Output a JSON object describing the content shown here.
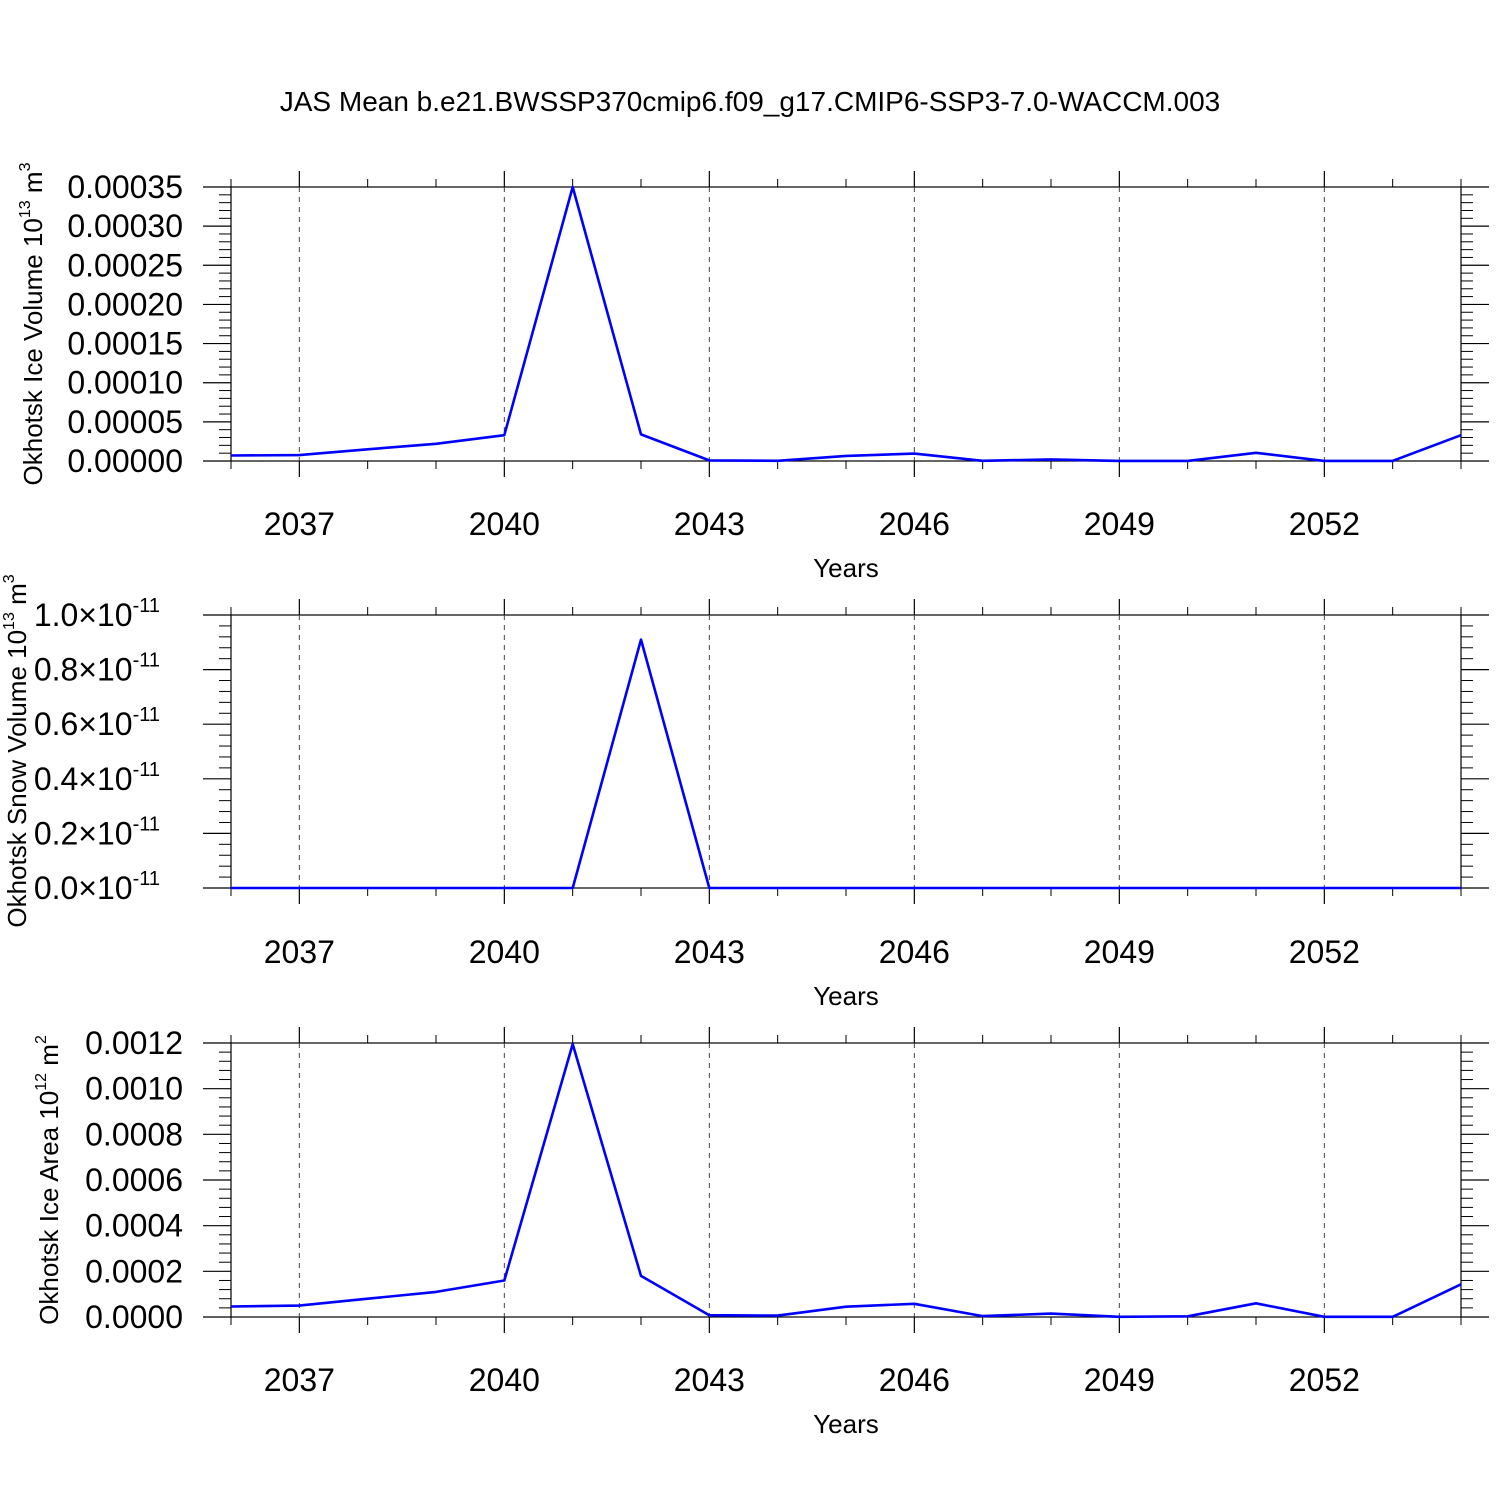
{
  "figure": {
    "title": "JAS Mean b.e21.BWSSP370cmip6.f09_g17.CMIP6-SSP3-7.0-WACCM.003",
    "line_color": "#0000ff"
  },
  "chart_data": [
    {
      "type": "line",
      "x": [
        2036,
        2037,
        2038,
        2039,
        2040,
        2041,
        2042,
        2043,
        2044,
        2045,
        2046,
        2047,
        2048,
        2049,
        2050,
        2051,
        2052,
        2053,
        2054
      ],
      "series": [
        {
          "values": [
            7e-06,
            7.5e-06,
            1.5e-05,
            2.2e-05,
            3.3e-05,
            0.00035,
            3.4e-05,
            8e-07,
            3e-07,
            6.5e-06,
            9.5e-06,
            2e-07,
            2e-06,
            1e-07,
            1e-07,
            1.05e-05,
            1e-07,
            1e-07,
            3.3e-05
          ]
        }
      ],
      "xlabel": "Years",
      "ylabel": {
        "text": "Okhotsk Ice Volume 10",
        "exp": "13",
        "unit": " m",
        "unit_exp": "3"
      },
      "xticks": [
        "2037",
        "2040",
        "2043",
        "2046",
        "2049",
        "2052"
      ],
      "yticks": [
        "0.00000",
        "0.00005",
        "0.00010",
        "0.00015",
        "0.00020",
        "0.00025",
        "0.00030",
        "0.00035"
      ],
      "ylim": [
        0,
        0.00035
      ],
      "xlim": [
        2036,
        2054
      ],
      "grid": "x-dashed"
    },
    {
      "type": "line",
      "x": [
        2036,
        2037,
        2038,
        2039,
        2040,
        2041,
        2042,
        2043,
        2044,
        2045,
        2046,
        2047,
        2048,
        2049,
        2050,
        2051,
        2052,
        2053,
        2054
      ],
      "series": [
        {
          "values": [
            0,
            0,
            0,
            0,
            0,
            0,
            9.1e-12,
            0,
            0,
            0,
            0,
            0,
            0,
            0,
            0,
            0,
            0,
            0,
            0
          ]
        }
      ],
      "xlabel": "Years",
      "ylabel": {
        "text": "Okhotsk Snow Volume 10",
        "exp": "13",
        "unit": " m",
        "unit_exp": "3"
      },
      "xticks": [
        "2037",
        "2040",
        "2043",
        "2046",
        "2049",
        "2052"
      ],
      "yticks": [
        {
          "m": "0.0",
          "e": "-11"
        },
        {
          "m": "0.2",
          "e": "-11"
        },
        {
          "m": "0.4",
          "e": "-11"
        },
        {
          "m": "0.6",
          "e": "-11"
        },
        {
          "m": "0.8",
          "e": "-11"
        },
        {
          "m": "1.0",
          "e": "-11"
        }
      ],
      "ylim": [
        0,
        1e-11
      ],
      "xlim": [
        2036,
        2054
      ],
      "grid": "x-dashed"
    },
    {
      "type": "line",
      "x": [
        2036,
        2037,
        2038,
        2039,
        2040,
        2041,
        2042,
        2043,
        2044,
        2045,
        2046,
        2047,
        2048,
        2049,
        2050,
        2051,
        2052,
        2053,
        2054
      ],
      "series": [
        {
          "values": [
            4.6e-05,
            5e-05,
            8e-05,
            0.00011,
            0.00016,
            0.001195,
            0.00018,
            8e-06,
            6e-06,
            4.5e-05,
            5.8e-05,
            4e-06,
            1.5e-05,
            1e-06,
            3e-06,
            6e-05,
            1e-06,
            1e-06,
            0.000143
          ]
        }
      ],
      "xlabel": "Years",
      "ylabel": {
        "text": "Okhotsk Ice Area 10",
        "exp": "12",
        "unit": " m",
        "unit_exp": "2"
      },
      "xticks": [
        "2037",
        "2040",
        "2043",
        "2046",
        "2049",
        "2052"
      ],
      "yticks": [
        "0.0000",
        "0.0002",
        "0.0004",
        "0.0006",
        "0.0008",
        "0.0010",
        "0.0012"
      ],
      "ylim": [
        0,
        0.0012
      ],
      "xlim": [
        2036,
        2054
      ],
      "grid": "x-dashed"
    }
  ]
}
